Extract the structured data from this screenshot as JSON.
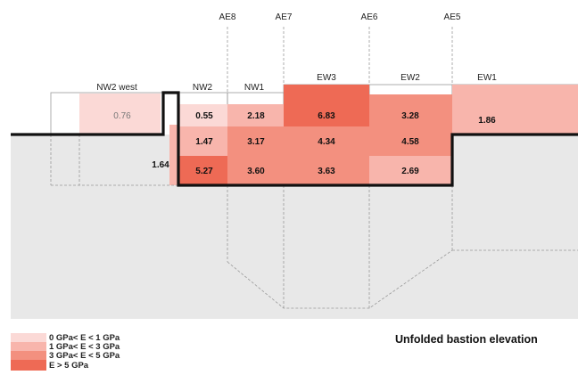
{
  "title": "Unfolded bastion elevation",
  "markers": [
    "AE8",
    "AE7",
    "AE6",
    "AE5"
  ],
  "sections": [
    "NW2 west",
    "NW2",
    "NW1",
    "EW3",
    "EW2",
    "EW1"
  ],
  "colors": {
    "c0": "#fbd9d6",
    "c1": "#f8b5ac",
    "c2": "#f3907f",
    "c3": "#ee6a55",
    "ground": "#e8e8e8"
  },
  "cells": [
    {
      "section": "NW2 west",
      "value": "0.76",
      "class": "c0"
    },
    {
      "section": "NW2",
      "value": "0.55",
      "class": "c0"
    },
    {
      "section": "NW2",
      "value": "1.47",
      "class": "c1"
    },
    {
      "section": "NW2",
      "value": "5.27",
      "class": "c3"
    },
    {
      "section": "NW2",
      "value": "1.64",
      "class": "c1"
    },
    {
      "section": "NW1",
      "value": "2.18",
      "class": "c1"
    },
    {
      "section": "NW1",
      "value": "3.17",
      "class": "c2"
    },
    {
      "section": "NW1",
      "value": "3.60",
      "class": "c2"
    },
    {
      "section": "EW3",
      "value": "6.83",
      "class": "c3"
    },
    {
      "section": "EW3",
      "value": "4.34",
      "class": "c2"
    },
    {
      "section": "EW3",
      "value": "3.63",
      "class": "c2"
    },
    {
      "section": "EW2",
      "value": "3.28",
      "class": "c2"
    },
    {
      "section": "EW2",
      "value": "4.58",
      "class": "c2"
    },
    {
      "section": "EW2",
      "value": "2.69",
      "class": "c1"
    },
    {
      "section": "EW1",
      "value": "1.86",
      "class": "c1"
    }
  ],
  "legend": [
    {
      "label": "0 GPa< E < 1 GPa",
      "class": "c0"
    },
    {
      "label": "1 GPa< E < 3 GPa",
      "class": "c1"
    },
    {
      "label": "3 GPa< E < 5 GPa",
      "class": "c2"
    },
    {
      "label": "E > 5 GPa",
      "class": "c3"
    }
  ]
}
